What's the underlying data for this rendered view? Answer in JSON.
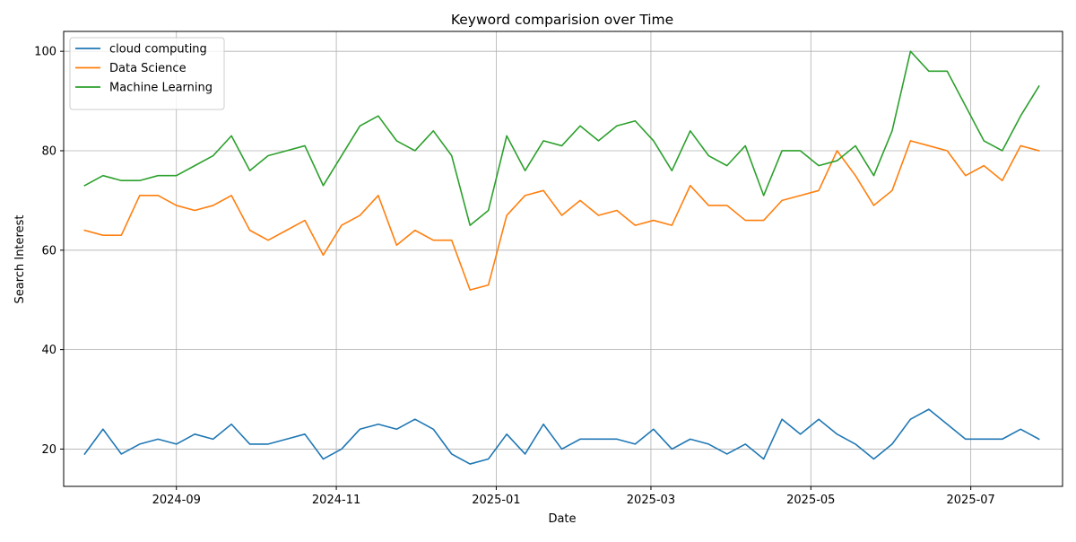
{
  "chart_data": {
    "type": "line",
    "title": "Keyword comparision over Time",
    "xlabel": "Date",
    "ylabel": "Search Interest",
    "x_type": "date",
    "xlim": [
      "2024-07-20",
      "2025-08-05"
    ],
    "ylim": [
      12.5,
      104
    ],
    "x_ticks": [
      {
        "value": "2024-09-01",
        "label": "2024-09"
      },
      {
        "value": "2024-11-01",
        "label": "2024-11"
      },
      {
        "value": "2025-01-01",
        "label": "2025-01"
      },
      {
        "value": "2025-03-01",
        "label": "2025-03"
      },
      {
        "value": "2025-05-01",
        "label": "2025-05"
      },
      {
        "value": "2025-07-01",
        "label": "2025-07"
      }
    ],
    "y_ticks": [
      20,
      40,
      60,
      80,
      100
    ],
    "grid": true,
    "legend_position": "upper-left",
    "x": [
      "2024-07-28",
      "2024-08-04",
      "2024-08-11",
      "2024-08-18",
      "2024-08-25",
      "2024-09-01",
      "2024-09-08",
      "2024-09-15",
      "2024-09-22",
      "2024-09-29",
      "2024-10-06",
      "2024-10-13",
      "2024-10-20",
      "2024-10-27",
      "2024-11-03",
      "2024-11-10",
      "2024-11-17",
      "2024-11-24",
      "2024-12-01",
      "2024-12-08",
      "2024-12-15",
      "2024-12-22",
      "2024-12-29",
      "2025-01-05",
      "2025-01-12",
      "2025-01-19",
      "2025-01-26",
      "2025-02-02",
      "2025-02-09",
      "2025-02-16",
      "2025-02-23",
      "2025-03-02",
      "2025-03-09",
      "2025-03-16",
      "2025-03-23",
      "2025-03-30",
      "2025-04-06",
      "2025-04-13",
      "2025-04-20",
      "2025-04-27",
      "2025-05-04",
      "2025-05-11",
      "2025-05-18",
      "2025-05-25",
      "2025-06-01",
      "2025-06-08",
      "2025-06-15",
      "2025-06-22",
      "2025-06-29",
      "2025-07-06",
      "2025-07-13",
      "2025-07-20",
      "2025-07-27"
    ],
    "series": [
      {
        "name": "cloud computing",
        "color": "#1f77b4",
        "values": [
          19,
          24,
          19,
          21,
          22,
          21,
          23,
          22,
          25,
          21,
          21,
          22,
          23,
          18,
          20,
          24,
          25,
          24,
          26,
          24,
          19,
          17,
          18,
          23,
          19,
          25,
          20,
          22,
          22,
          22,
          21,
          24,
          20,
          22,
          21,
          19,
          21,
          18,
          26,
          23,
          26,
          23,
          21,
          18,
          21,
          26,
          28,
          25,
          22,
          22,
          22,
          24,
          22
        ]
      },
      {
        "name": "Data Science",
        "color": "#ff7f0e",
        "values": [
          64,
          63,
          63,
          71,
          71,
          69,
          68,
          69,
          71,
          64,
          62,
          64,
          66,
          59,
          65,
          67,
          71,
          61,
          64,
          62,
          62,
          52,
          53,
          67,
          71,
          72,
          67,
          70,
          67,
          68,
          65,
          66,
          65,
          73,
          69,
          69,
          66,
          66,
          70,
          71,
          72,
          80,
          75,
          69,
          72,
          82,
          81,
          80,
          75,
          77,
          74,
          81,
          80
        ]
      },
      {
        "name": "Machine Learning",
        "color": "#2ca02c",
        "values": [
          73,
          75,
          74,
          74,
          75,
          75,
          77,
          79,
          83,
          76,
          79,
          80,
          81,
          73,
          79,
          85,
          87,
          82,
          80,
          84,
          79,
          65,
          68,
          83,
          76,
          82,
          81,
          85,
          82,
          85,
          86,
          82,
          76,
          84,
          79,
          77,
          81,
          71,
          80,
          80,
          77,
          78,
          81,
          75,
          84,
          100,
          96,
          96,
          89,
          82,
          80,
          87,
          93
        ]
      }
    ]
  }
}
